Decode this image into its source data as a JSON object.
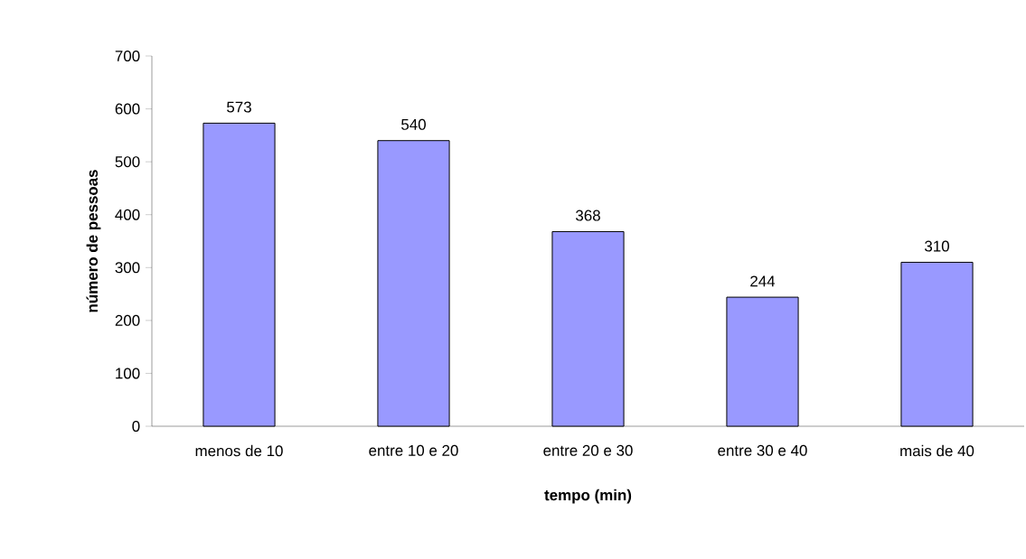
{
  "chart_data": {
    "type": "bar",
    "xlabel": "tempo (min)",
    "ylabel": "número de pessoas",
    "categories": [
      "menos de 10",
      "entre 10 e 20",
      "entre 20 e 30",
      "entre 30 e 40",
      "mais de 40"
    ],
    "values": [
      573,
      540,
      368,
      244,
      310
    ],
    "color": "#9999ff",
    "ylim": [
      0,
      700
    ],
    "yticks": [
      0,
      100,
      200,
      300,
      400,
      500,
      600,
      700
    ],
    "data_labels": true
  }
}
